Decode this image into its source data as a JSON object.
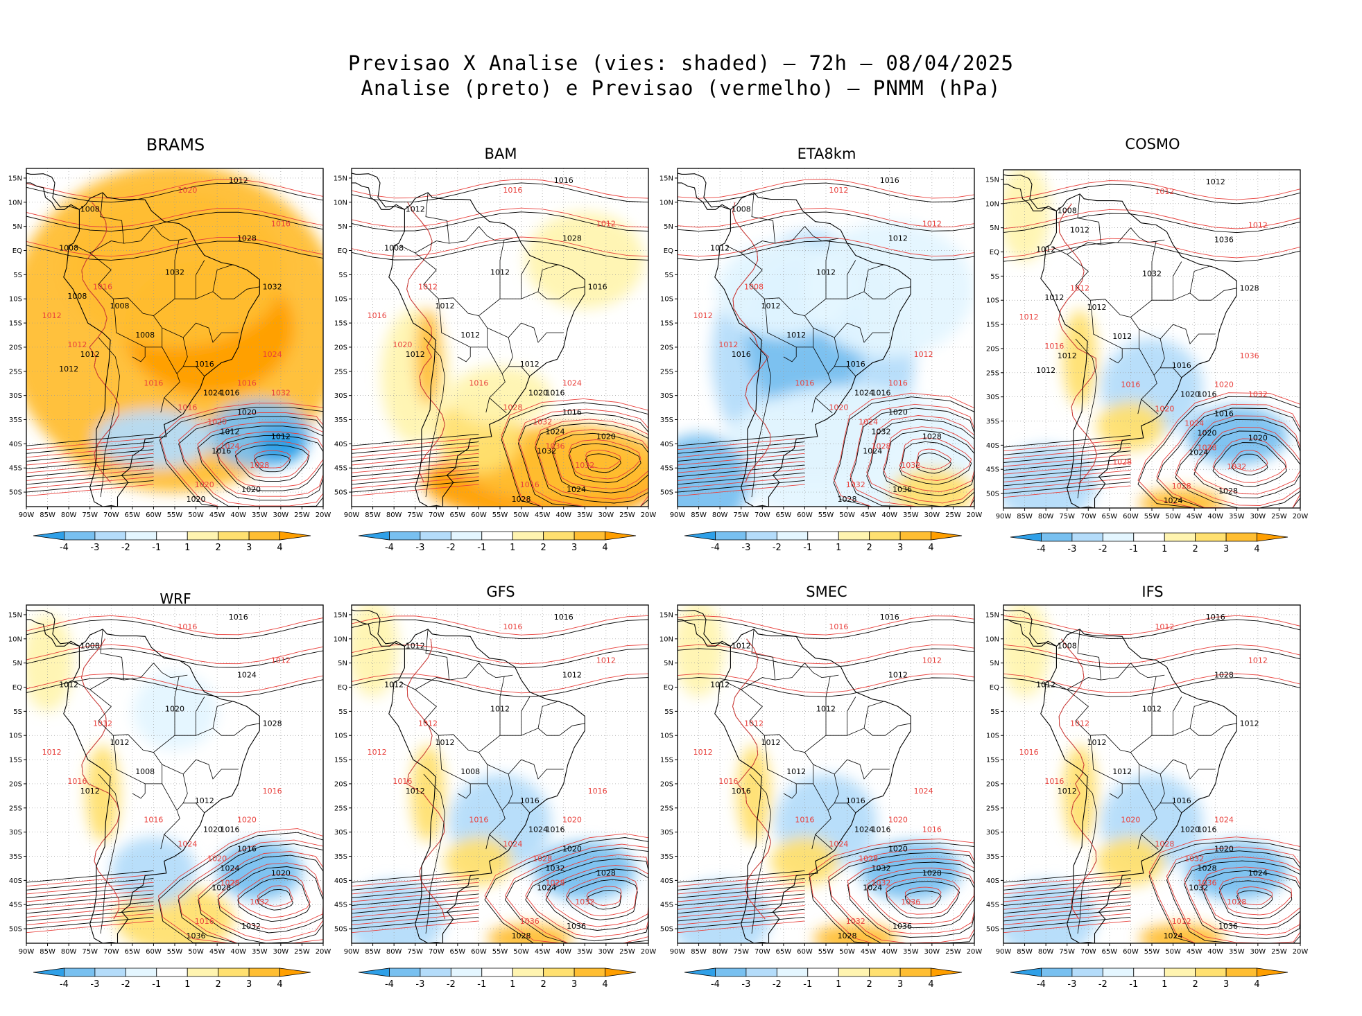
{
  "header": {
    "line1": "Previsao X Analise (vies: shaded) — 72h — 08/04/2025",
    "line2": "Analise (preto) e Previsao (vermelho) — PNMM (hPa)"
  },
  "axes": {
    "lat_labels": [
      "15N",
      "10N",
      "5N",
      "EQ",
      "5S",
      "10S",
      "15S",
      "20S",
      "25S",
      "30S",
      "35S",
      "40S",
      "45S",
      "50S"
    ],
    "lon_labels": [
      "90W",
      "85W",
      "80W",
      "75W",
      "70W",
      "65W",
      "60W",
      "55W",
      "50W",
      "45W",
      "40W",
      "35W",
      "30W",
      "25W",
      "20W"
    ],
    "lat_range": [
      -53,
      17
    ],
    "lon_range": [
      -90,
      -20
    ]
  },
  "colorbar": {
    "labels": [
      "-4",
      "-3",
      "-2",
      "-1",
      "1",
      "2",
      "3",
      "4"
    ],
    "colors": [
      "#2fa0e8",
      "#78c0f0",
      "#b4dcfa",
      "#e4f6ff",
      "#ffffff",
      "#fff4b0",
      "#ffe070",
      "#ffbe32",
      "#ff9f00"
    ]
  },
  "legend_colors": {
    "analysis": "#000000",
    "forecast": "#e8403c"
  },
  "panels": [
    {
      "name": "BRAMS",
      "bias_field": "strong-positive",
      "analysis_labels": [
        "1012",
        "1008",
        "1008",
        "1008",
        "1008",
        "1012",
        "1016",
        "1016",
        "1020",
        "1024",
        "1012",
        "1012",
        "1016",
        "1020",
        "1020",
        "1028",
        "1032",
        "1032",
        "1012",
        "1008"
      ],
      "forecast_labels": [
        "1020",
        "1016",
        "1016",
        "1012",
        "1012",
        "1016",
        "1016",
        "1016",
        "1020",
        "1024",
        "1028",
        "1020",
        "1024",
        "1032"
      ]
    },
    {
      "name": "BAM",
      "bias_field": "positive-south",
      "analysis_labels": [
        "1016",
        "1012",
        "1008",
        "1012",
        "1012",
        "1012",
        "1012",
        "1016",
        "1016",
        "1020",
        "1020",
        "1024",
        "1032",
        "1024",
        "1028",
        "1028",
        "1012",
        "1016"
      ],
      "forecast_labels": [
        "1016",
        "1012",
        "1012",
        "1016",
        "1020",
        "1016",
        "1024",
        "1028",
        "1032",
        "1036",
        "1032",
        "1016"
      ]
    },
    {
      "name": "ETA8km",
      "bias_field": "negative-wide",
      "analysis_labels": [
        "1016",
        "1008",
        "1012",
        "1012",
        "1012",
        "1016",
        "1016",
        "1016",
        "1020",
        "1024",
        "1028",
        "1032",
        "1024",
        "1036",
        "1028",
        "1012",
        "1012"
      ],
      "forecast_labels": [
        "1012",
        "1012",
        "1008",
        "1012",
        "1012",
        "1016",
        "1016",
        "1020",
        "1024",
        "1028",
        "1032",
        "1032",
        "1012"
      ]
    },
    {
      "name": "COSMO",
      "bias_field": "mixed",
      "analysis_labels": [
        "1012",
        "1008",
        "1012",
        "1012",
        "1012",
        "1012",
        "1016",
        "1016",
        "1016",
        "1020",
        "1020",
        "1020",
        "1024",
        "1028",
        "1024",
        "1036",
        "1032",
        "1028",
        "1012",
        "1012",
        "1012"
      ],
      "forecast_labels": [
        "1012",
        "1012",
        "1012",
        "1012",
        "1016",
        "1016",
        "1020",
        "1020",
        "1024",
        "1028",
        "1032",
        "1028",
        "1036",
        "1032",
        "1028"
      ]
    },
    {
      "name": "WRF",
      "bias_field": "mixed-south-positive",
      "analysis_labels": [
        "1016",
        "1008",
        "1012",
        "1012",
        "1008",
        "1012",
        "1012",
        "1016",
        "1016",
        "1020",
        "1020",
        "1024",
        "1028",
        "1032",
        "1036",
        "1024",
        "1020",
        "1028"
      ],
      "forecast_labels": [
        "1016",
        "1012",
        "1012",
        "1012",
        "1016",
        "1016",
        "1020",
        "1024",
        "1020",
        "1028",
        "1032",
        "1016",
        "1016"
      ]
    },
    {
      "name": "GFS",
      "bias_field": "mixed",
      "analysis_labels": [
        "1016",
        "1012",
        "1012",
        "1012",
        "1008",
        "1012",
        "1016",
        "1016",
        "1020",
        "1024",
        "1028",
        "1032",
        "1024",
        "1036",
        "1028",
        "1012",
        "1012"
      ],
      "forecast_labels": [
        "1016",
        "1012",
        "1012",
        "1012",
        "1016",
        "1016",
        "1020",
        "1024",
        "1028",
        "1028",
        "1032",
        "1036",
        "1016"
      ]
    },
    {
      "name": "SMEC",
      "bias_field": "mixed",
      "analysis_labels": [
        "1016",
        "1012",
        "1012",
        "1012",
        "1012",
        "1016",
        "1016",
        "1016",
        "1020",
        "1024",
        "1028",
        "1032",
        "1024",
        "1036",
        "1028",
        "1012",
        "1012"
      ],
      "forecast_labels": [
        "1016",
        "1012",
        "1012",
        "1012",
        "1016",
        "1016",
        "1020",
        "1024",
        "1028",
        "1032",
        "1036",
        "1032",
        "1024",
        "1016"
      ]
    },
    {
      "name": "IFS",
      "bias_field": "mixed",
      "analysis_labels": [
        "1016",
        "1008",
        "1012",
        "1012",
        "1012",
        "1012",
        "1016",
        "1016",
        "1020",
        "1020",
        "1024",
        "1028",
        "1032",
        "1036",
        "1024",
        "1028",
        "1012",
        "1012"
      ],
      "forecast_labels": [
        "1012",
        "1012",
        "1012",
        "1016",
        "1016",
        "1020",
        "1024",
        "1028",
        "1032",
        "1036",
        "1028",
        "1012"
      ]
    }
  ]
}
